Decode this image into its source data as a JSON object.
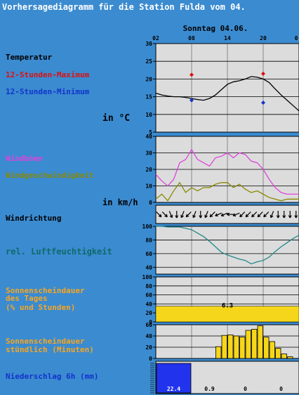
{
  "title": "Vorhersagediagramm für die Station Fulda vom 04.",
  "day_label": "Sonntag 04.06.",
  "hour_ticks": [
    "02",
    "08",
    "14",
    "20",
    "0"
  ],
  "panels": {
    "temperature": {
      "label": "Temperatur",
      "max_label": "12-Stunden-Maximum",
      "min_label": "12-Stunden-Minimum",
      "unit_label": "in °C",
      "y_ticks": [
        "30",
        "25",
        "20",
        "15",
        "10",
        "5"
      ]
    },
    "wind": {
      "gust_label": "Windböen",
      "speed_label": "Windgeschwindigkeit",
      "unit_label": "in km/h",
      "y_ticks": [
        "40",
        "30",
        "20",
        "10",
        "0"
      ]
    },
    "direction": {
      "label": "Windrichtung"
    },
    "humidity": {
      "label": "rel. Luftfeuchtigkeit",
      "y_ticks": [
        "100",
        "80",
        "60",
        "40"
      ]
    },
    "sunshine_daily": {
      "label_lines": [
        "Sonnenscheindauer",
        "des Tages",
        "(% und Stunden)"
      ],
      "y_ticks": [
        "100",
        "80",
        "60",
        "40",
        "20",
        "0"
      ],
      "hours_text": "6.3"
    },
    "sunshine_hourly": {
      "label_lines": [
        "Sonnenscheindauer",
        "stündlich (Minuten)"
      ],
      "y_ticks": [
        "60",
        "40",
        "20",
        "0"
      ]
    },
    "precip": {
      "label": "Niederschlag 6h (mm)",
      "amounts": [
        "22.4",
        "0.9",
        "0",
        "0"
      ]
    }
  },
  "colors": {
    "background": "#3b8bd0",
    "panel": "#dcdcdc",
    "temperature": "#000000",
    "max": "#dd1111",
    "min": "#1133cc",
    "gust": "#dd44dd",
    "speed": "#888800",
    "humidity": "#228888",
    "sunshine": "#f5d61a",
    "precip": "#2233ee",
    "sun_label": "#f5a623",
    "hum_label": "#0f6b6b"
  },
  "chart_data": [
    {
      "type": "line",
      "name": "temperature",
      "x_hours": [
        0,
        1,
        2,
        3,
        4,
        5,
        6,
        7,
        8,
        9,
        10,
        11,
        12,
        13,
        14,
        15,
        16,
        17,
        18,
        19,
        20,
        21,
        22,
        23,
        24
      ],
      "series": [
        {
          "values": [
            16,
            15.5,
            15.2,
            15,
            15,
            14.8,
            14.5,
            14.2,
            14,
            14.5,
            15.5,
            17,
            18.5,
            19.2,
            19.5,
            20,
            20.7,
            20.5,
            20,
            19,
            17.2,
            15.5,
            14,
            12.5,
            11
          ]
        }
      ],
      "max": {
        "hour": 6,
        "value": 21.2,
        "hour2": 18,
        "value2": 21.5
      },
      "min": {
        "hour": 6,
        "value": 14,
        "hour2": 18,
        "value2": 13.3
      },
      "ylim": [
        5,
        30
      ]
    },
    {
      "type": "line",
      "name": "wind",
      "x_hours": [
        0,
        1,
        2,
        3,
        4,
        5,
        6,
        7,
        8,
        9,
        10,
        11,
        12,
        13,
        14,
        15,
        16,
        17,
        18,
        19,
        20,
        21,
        22,
        23,
        24
      ],
      "series": [
        {
          "values": [
            17,
            13,
            10,
            14,
            24,
            26,
            32,
            26,
            24,
            22,
            27,
            28,
            30,
            27,
            30,
            29,
            25,
            24,
            20,
            14,
            9,
            6,
            5,
            5,
            5
          ]
        },
        {
          "values": [
            2,
            5,
            1,
            7,
            12,
            6,
            9,
            7,
            9,
            9,
            11,
            12,
            12,
            9,
            11,
            8,
            6,
            7,
            5,
            3,
            2,
            1,
            2,
            2,
            2
          ]
        }
      ],
      "ylim": [
        0,
        40
      ]
    },
    {
      "type": "line",
      "name": "humidity",
      "x_hours": [
        0,
        1,
        2,
        3,
        4,
        5,
        6,
        7,
        8,
        9,
        10,
        11,
        12,
        13,
        14,
        15,
        16,
        17,
        18,
        19,
        20,
        21,
        22,
        23,
        24
      ],
      "series": [
        {
          "values": [
            100,
            100,
            99,
            99,
            99,
            97,
            95,
            90,
            85,
            78,
            70,
            62,
            58,
            55,
            52,
            50,
            45,
            48,
            50,
            55,
            63,
            70,
            76,
            82,
            87
          ]
        }
      ],
      "ylim": [
        30,
        100
      ]
    },
    {
      "type": "bar",
      "name": "sunshine_daily",
      "values": [
        35
      ],
      "ylim": [
        0,
        100
      ]
    },
    {
      "type": "bar",
      "name": "sunshine_hourly",
      "x_hours": [
        0,
        1,
        2,
        3,
        4,
        5,
        6,
        7,
        8,
        9,
        10,
        11,
        12,
        13,
        14,
        15,
        16,
        17,
        18,
        19,
        20,
        21,
        22,
        23
      ],
      "values": [
        0,
        0,
        0,
        0,
        0,
        0,
        0,
        0,
        0,
        0,
        21,
        41,
        42,
        40,
        38,
        50,
        52,
        58,
        38,
        30,
        18,
        8,
        3,
        0
      ],
      "ylim": [
        0,
        60
      ]
    },
    {
      "type": "bar",
      "name": "precip",
      "values": [
        22.4,
        0.9,
        0,
        0
      ]
    }
  ],
  "wind_direction": [
    "NW",
    "NW",
    "NNW",
    "N",
    "NNE",
    "NE",
    "NNE",
    "N",
    "NNE",
    "NE",
    "ENE",
    "ENE",
    "E",
    "ENE",
    "NE",
    "NE",
    "NE",
    "NE",
    "NE",
    "NNE",
    "N",
    "N",
    "N",
    "N"
  ]
}
